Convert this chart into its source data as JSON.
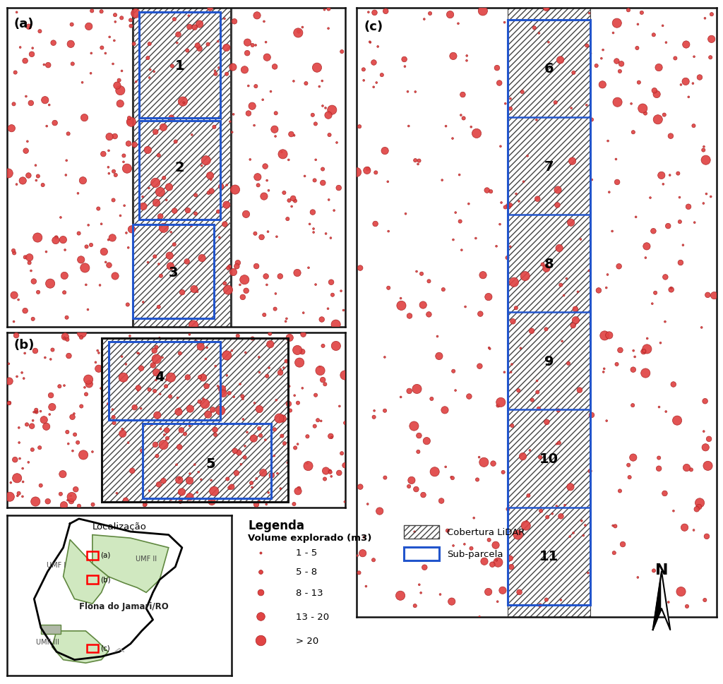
{
  "bg_color": "#ffffff",
  "dot_color": "#e04444",
  "dot_edge_color": "#aa2222",
  "hatch_color": "#444444",
  "black_rect_color": "#111111",
  "blue_rect_color": "#2255cc",
  "size_classes": [
    4,
    14,
    30,
    55,
    90
  ],
  "size_labels": [
    "1 - 5",
    "5 - 8",
    "8 - 13",
    "13 - 20",
    "> 20"
  ],
  "legend_title": "Legenda",
  "volume_label": "Volume explorado (m3)",
  "lidar_label": "Cobertura LiDAR",
  "subparcela_label": "Sub-parcela",
  "localization_title": "Localização",
  "flona_label": "Flona do Jamari/RO"
}
